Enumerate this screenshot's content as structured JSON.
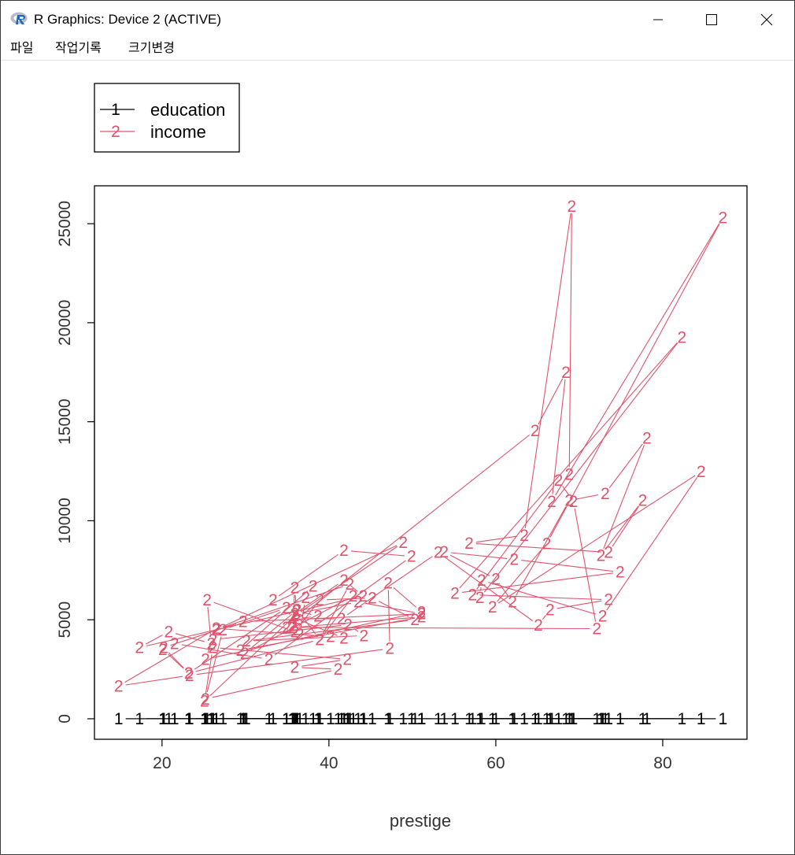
{
  "window": {
    "title": "R Graphics: Device 2 (ACTIVE)",
    "logo_icon": "r-logo-icon",
    "controls": [
      "minimize-icon",
      "maximize-icon",
      "close-icon"
    ]
  },
  "menu": {
    "items": [
      "파일",
      "작업기록",
      "크기변경"
    ]
  },
  "colors": {
    "education": "#000000",
    "income": "#DF536B"
  },
  "chart_data": {
    "type": "line",
    "title": "",
    "xlabel": "prestige",
    "ylabel": "",
    "xlim": [
      14.8,
      87.2
    ],
    "ylim": [
      0,
      25879
    ],
    "xticks": [
      20,
      40,
      60,
      80
    ],
    "yticks": [
      0,
      5000,
      10000,
      15000,
      20000,
      25000
    ],
    "xtick_labels": [
      "20",
      "40",
      "60",
      "80"
    ],
    "ytick_labels": [
      "0",
      "5000",
      "10000",
      "15000",
      "20000",
      "25000"
    ],
    "grid": false,
    "legend": {
      "position": "top-left",
      "entries": [
        {
          "label": "education",
          "symbol": "1",
          "series": 0
        },
        {
          "label": "income",
          "symbol": "2",
          "series": 1
        }
      ]
    },
    "series": [
      {
        "name": "education",
        "symbol": "1",
        "x": [
          68.8,
          69.1,
          63.4,
          56.8,
          73.5,
          77.6,
          72.6,
          78.1,
          73.1,
          68.8,
          62.0,
          60.0,
          53.8,
          62.2,
          74.9,
          55.1,
          82.3,
          58.1,
          58.3,
          72.8,
          84.6,
          59.6,
          66.1,
          87.2,
          66.7,
          68.4,
          64.7,
          34.9,
          72.1,
          69.3,
          67.5,
          57.2,
          73.5,
          66.5,
          65.1,
          53.1,
          41.5,
          36.1,
          38.7,
          36.1,
          35.9,
          35.7,
          36.5,
          37.2,
          38.1,
          29.4,
          51.1,
          35.7,
          35.6,
          41.8,
          40.2,
          26.5,
          14.8,
          23.3,
          47.3,
          47.1,
          51.1,
          25.2,
          26.1,
          42.3,
          44.2,
          30.1,
          50.3,
          45.2,
          38.9,
          35.9,
          25.4,
          25.9,
          20.8,
          17.3,
          44.1,
          41.8,
          35.9,
          43.5,
          51.1,
          29.7,
          20.2,
          23.2,
          38.9,
          36.2,
          29.9,
          42.9,
          38.9,
          42.5,
          26.5,
          48.9,
          35.9,
          25.1,
          26.1,
          42.2,
          35.9,
          41.1,
          25.2,
          27.3,
          34.9,
          23.2,
          20.1,
          21.5,
          32.8,
          49.9,
          41.8,
          33.3
        ],
        "y": [
          0,
          0,
          0,
          0,
          0,
          0,
          0,
          0,
          0,
          0,
          0,
          0,
          0,
          0,
          0,
          0,
          0,
          0,
          0,
          0,
          0,
          0,
          0,
          0,
          0,
          0,
          0,
          0,
          0,
          0,
          0,
          0,
          0,
          0,
          0,
          0,
          0,
          0,
          0,
          0,
          0,
          0,
          0,
          0,
          0,
          0,
          0,
          0,
          0,
          0,
          0,
          0,
          0,
          0,
          0,
          0,
          0,
          0,
          0,
          0,
          0,
          0,
          0,
          0,
          0,
          0,
          0,
          0,
          0,
          0,
          0,
          0,
          0,
          0,
          0,
          0,
          0,
          0,
          0,
          0,
          0,
          0,
          0,
          0,
          0,
          0,
          0,
          0,
          0,
          0,
          0,
          0,
          0,
          0,
          0,
          0,
          0,
          0,
          0,
          0,
          0,
          0
        ]
      },
      {
        "name": "income",
        "symbol": "2",
        "x": [
          68.8,
          69.1,
          63.4,
          56.8,
          73.5,
          77.6,
          72.6,
          78.1,
          73.1,
          68.8,
          62.0,
          60.0,
          53.8,
          62.2,
          74.9,
          55.1,
          82.3,
          58.1,
          58.3,
          72.8,
          84.6,
          59.6,
          66.1,
          87.2,
          66.7,
          68.4,
          64.7,
          34.9,
          72.1,
          69.3,
          67.5,
          57.2,
          73.5,
          66.5,
          65.1,
          53.1,
          41.5,
          36.1,
          38.7,
          36.1,
          35.9,
          35.7,
          36.5,
          37.2,
          38.1,
          29.4,
          51.1,
          35.7,
          35.6,
          41.8,
          40.2,
          26.5,
          14.8,
          23.3,
          47.3,
          47.1,
          51.1,
          25.2,
          26.1,
          42.3,
          44.2,
          30.1,
          50.3,
          45.2,
          38.9,
          35.9,
          25.4,
          25.9,
          20.8,
          17.3,
          44.1,
          41.8,
          35.9,
          43.5,
          51.1,
          29.7,
          20.2,
          23.2,
          38.9,
          36.2,
          29.9,
          42.9,
          38.9,
          42.5,
          26.5,
          48.9,
          35.9,
          25.1,
          26.1,
          42.2,
          35.9,
          41.1,
          25.2,
          27.3,
          34.9,
          23.2,
          20.1,
          21.5,
          32.8,
          49.9,
          41.8,
          33.3
        ],
        "y": [
          12351,
          25879,
          9271,
          8865,
          8403,
          11030,
          8258,
          14163,
          11377,
          11023,
          5902,
          7059,
          8425,
          8049,
          7405,
          6336,
          19263,
          6112,
          6992,
          5180,
          12480,
          5648,
          8845,
          25308,
          10981,
          17498,
          14558,
          4614,
          4549,
          10973,
          12040,
          6258,
          6012,
          5511,
          4733,
          8403,
          5052,
          5051,
          5179,
          5462,
          6613,
          4733,
          4280,
          6115,
          6697,
          3467,
          5145,
          4611,
          5133,
          4075,
          4148,
          4561,
          1656,
          2190,
          3548,
          6860,
          5395,
          3000,
          4000,
          4751,
          4200,
          3925,
          5000,
          6100,
          6000,
          4400,
          6000,
          3800,
          4400,
          3600,
          6200,
          7000,
          5300,
          5900,
          5300,
          4900,
          3600,
          2300,
          4000,
          5500,
          3300,
          6200,
          4000,
          6800,
          4500,
          8900,
          5200,
          900,
          3600,
          3000,
          2600,
          2500,
          1000,
          4500,
          5600,
          2300,
          3500,
          3800,
          3000,
          8200,
          8500,
          6000
        ]
      }
    ]
  }
}
